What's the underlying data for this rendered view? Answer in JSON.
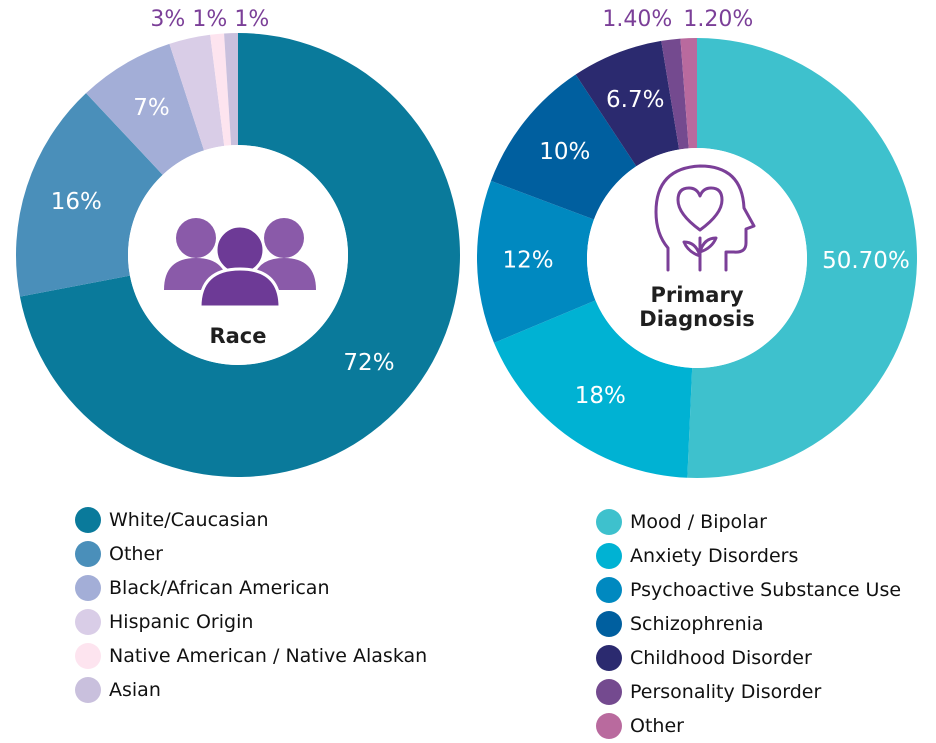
{
  "chart_data": [
    {
      "type": "pie",
      "center_label": "Race",
      "categories": [
        "White/Caucasian",
        "Other",
        "Black/African American",
        "Hispanic Origin",
        "Native American / Native Alaskan",
        "Asian"
      ],
      "values": [
        72,
        16,
        7,
        3,
        1,
        1
      ],
      "value_labels": [
        "72%",
        "16%",
        "7%",
        "3%",
        "1%",
        "1%"
      ],
      "colors": [
        "#0a7a9b",
        "#4a8fba",
        "#a3aed7",
        "#d9cde7",
        "#fde4ef",
        "#c9c0dd"
      ]
    },
    {
      "type": "pie",
      "center_label": "Primary Diagnosis",
      "categories": [
        "Mood / Bipolar",
        "Anxiety Disorders",
        "Psychoactive Substance Use",
        "Schizophrenia",
        "Childhood Disorder",
        "Personality Disorder",
        "Other"
      ],
      "values": [
        50.7,
        18,
        12,
        10,
        6.7,
        1.4,
        1.2
      ],
      "value_labels": [
        "50.70%",
        "18%",
        "12%",
        "10%",
        "6.7%",
        "1.40%",
        "1.20%"
      ],
      "colors": [
        "#3ec1cd",
        "#00b2d3",
        "#0089c0",
        "#005f9f",
        "#2b2a6f",
        "#744a8f",
        "#b96a9e"
      ]
    }
  ]
}
